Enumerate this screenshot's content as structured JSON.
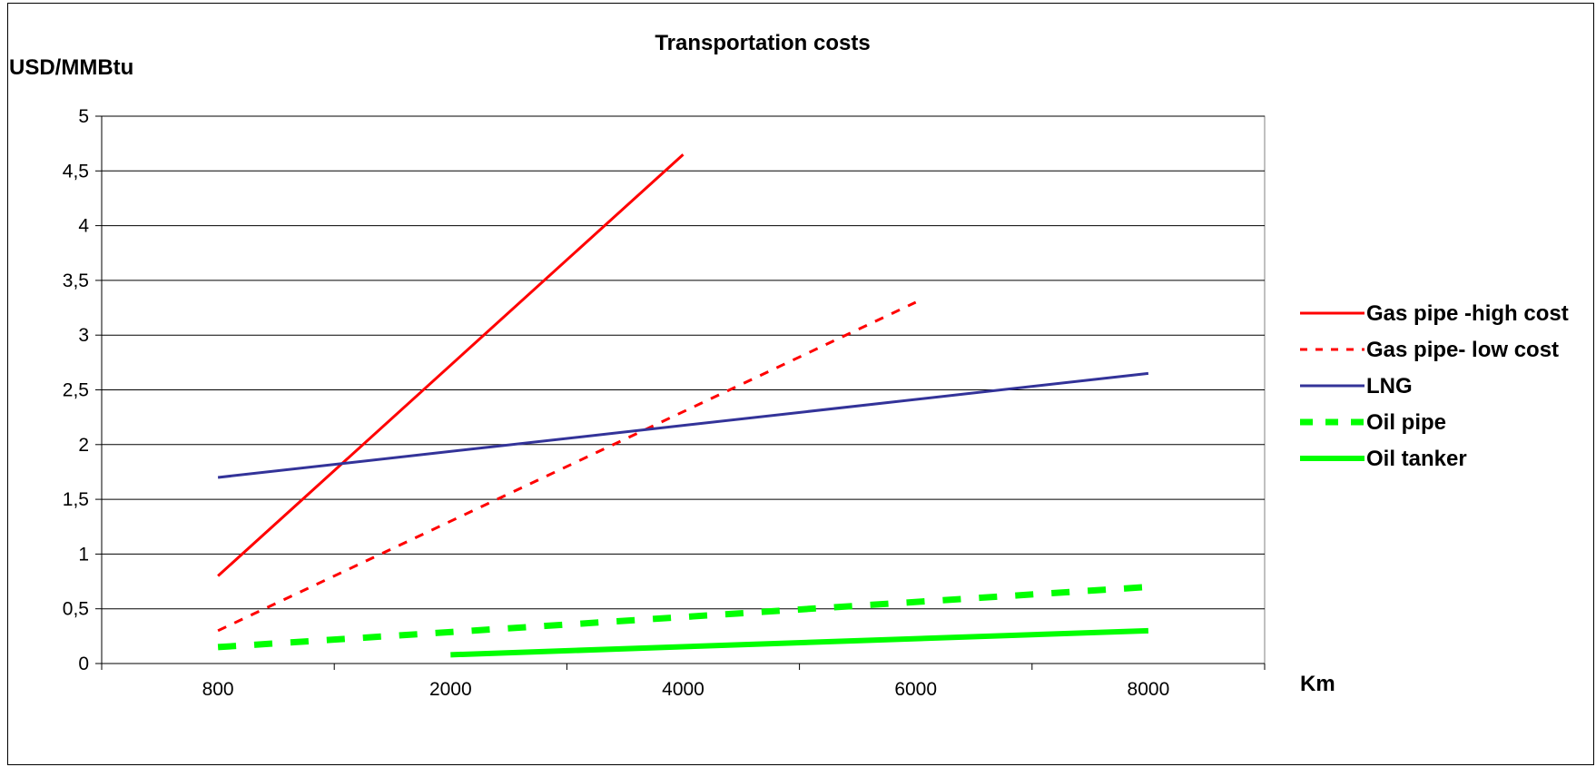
{
  "chart_data": {
    "type": "line",
    "title": "Transportation costs",
    "ylabel": "USD/MMBtu",
    "xlabel": "Km",
    "categories": [
      "800",
      "2000",
      "4000",
      "6000",
      "8000"
    ],
    "ylim": [
      0,
      5
    ],
    "yticks": [
      "0",
      "0,5",
      "1",
      "1,5",
      "2",
      "2,5",
      "3",
      "3,5",
      "4",
      "4,5",
      "5"
    ],
    "grid": true,
    "legend_position": "right",
    "series": [
      {
        "name": "Gas pipe -high cost",
        "color": "#ff0000",
        "style": "solid",
        "values": [
          0.8,
          null,
          4.65,
          null,
          null
        ]
      },
      {
        "name": "Gas pipe- low cost",
        "color": "#ff0000",
        "style": "dashed",
        "values": [
          0.3,
          null,
          null,
          3.3,
          null
        ]
      },
      {
        "name": "LNG",
        "color": "#333399",
        "style": "solid",
        "values": [
          1.7,
          null,
          null,
          null,
          2.65
        ]
      },
      {
        "name": "Oil pipe",
        "color": "#00ff00",
        "style": "dashed-thick",
        "values": [
          0.15,
          null,
          null,
          null,
          0.7
        ]
      },
      {
        "name": "Oil tanker",
        "color": "#00ff00",
        "style": "solid-thick",
        "values": [
          null,
          0.08,
          null,
          null,
          0.3
        ]
      }
    ]
  }
}
